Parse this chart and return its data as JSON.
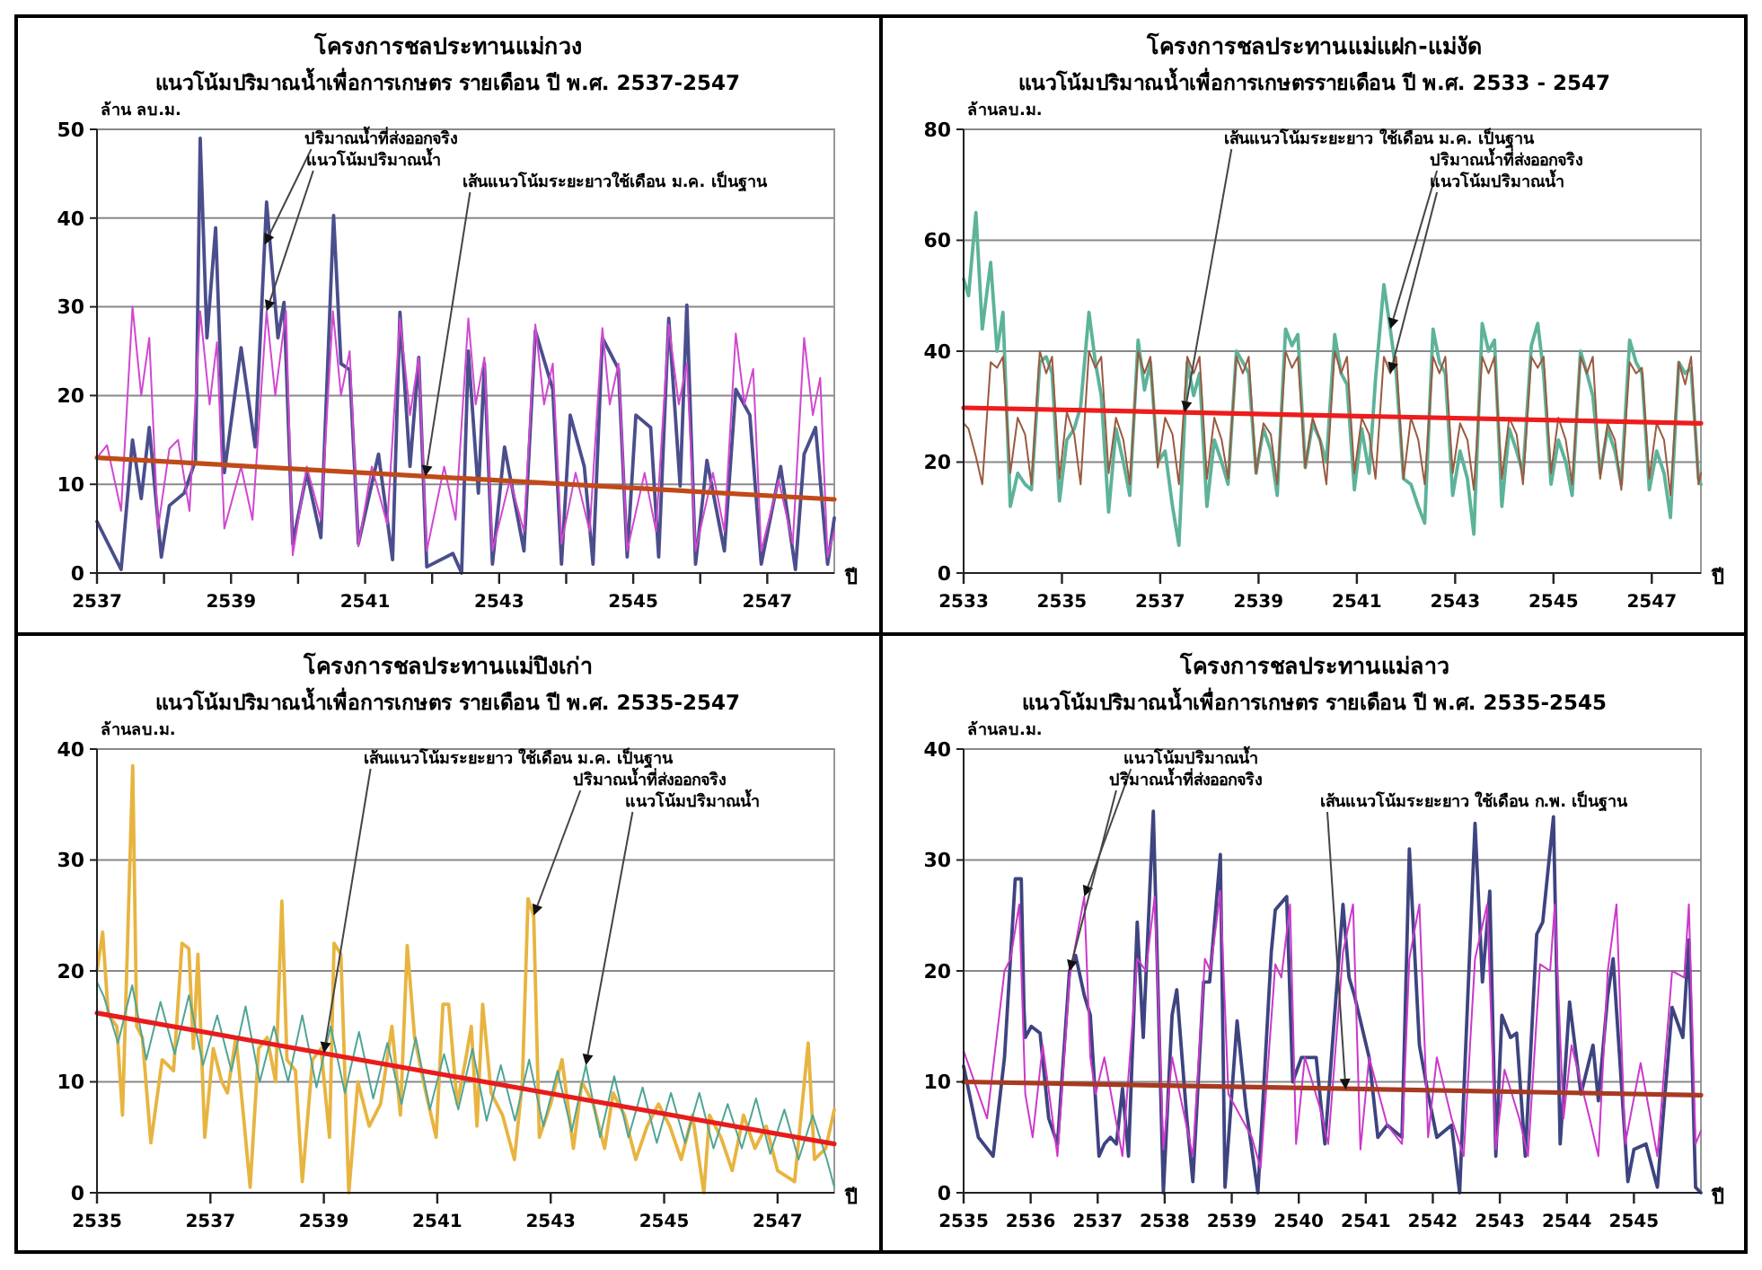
{
  "chart_data": [
    {
      "type": "line",
      "title": "โครงการชลประทานแม่กวง",
      "subtitle": "แนวโน้มปริมาณน้ำเพื่อการเกษตร รายเดือน ปี พ.ศ. 2537-2547",
      "ylabel": "ล้าน ลบ.ม.",
      "xlabel": "ปี",
      "xlim": [
        2537,
        2548
      ],
      "ylim": [
        0,
        50
      ],
      "yticks": [
        0,
        10,
        20,
        30,
        40,
        50
      ],
      "grid": "y",
      "xticks": [
        2537,
        {
          "value": 2538,
          "label": null
        },
        2539,
        {
          "value": 2540,
          "label": null
        },
        2541,
        {
          "value": 2542,
          "label": null
        },
        2543,
        {
          "value": 2544,
          "label": null
        },
        2545,
        {
          "value": 2546,
          "label": null
        },
        2547
      ],
      "series": [
        {
          "color": "#4a4e8c",
          "x": [
            2537,
            2537.36,
            2537.53,
            2537.66,
            2537.78,
            2537.96,
            2538.08,
            2538.3,
            2538.47,
            2538.54,
            2538.64,
            2538.77,
            2538.9,
            2539.15,
            2539.36,
            2539.53,
            2539.7,
            2539.79,
            2539.92,
            2540.13,
            2540.34,
            2540.53,
            2540.64,
            2540.77,
            2540.9,
            2541.2,
            2541.41,
            2541.52,
            2541.67,
            2541.8,
            2541.92,
            2542.31,
            2542.44,
            2542.54,
            2542.69,
            2542.78,
            2542.9,
            2543.08,
            2543.37,
            2543.54,
            2543.8,
            2543.93,
            2544.06,
            2544.27,
            2544.4,
            2544.54,
            2544.78,
            2544.91,
            2545.04,
            2545.26,
            2545.38,
            2545.53,
            2545.7,
            2545.8,
            2545.93,
            2546.1,
            2546.36,
            2546.53,
            2546.74,
            2546.91,
            2547.2,
            2547.42,
            2547.55,
            2547.72,
            2547.9,
            2548
          ],
          "values": [
            5.8,
            0.4,
            15,
            8.4,
            16.4,
            1.8,
            7.6,
            9,
            12.7,
            49,
            26.5,
            38.9,
            11.3,
            25.4,
            14.2,
            41.8,
            26.5,
            30.5,
            3.3,
            11.3,
            4,
            40.3,
            23.6,
            22.9,
            3.3,
            13.4,
            1.5,
            29.4,
            12,
            24.3,
            0.7,
            2.2,
            0,
            25,
            9,
            23.6,
            1,
            14.2,
            2.5,
            27.3,
            20.7,
            1,
            17.8,
            12,
            1,
            26.5,
            23,
            1.8,
            17.8,
            16.4,
            1.8,
            28.7,
            9.8,
            30.2,
            1,
            12.7,
            2.5,
            20.7,
            17.8,
            1,
            12,
            0.4,
            13.4,
            16.4,
            1,
            6.2
          ]
        },
        {
          "color": "#d048d0",
          "x": [
            2537,
            2537.15,
            2537.36,
            2537.53,
            2537.66,
            2537.78,
            2537.91,
            2538.08,
            2538.21,
            2538.38,
            2538.54,
            2538.68,
            2538.79,
            2538.9,
            2539.15,
            2539.32,
            2539.53,
            2539.66,
            2539.82,
            2539.92,
            2540.13,
            2540.34,
            2540.52,
            2540.64,
            2540.77,
            2540.9,
            2541.1,
            2541.33,
            2541.52,
            2541.67,
            2541.8,
            2541.92,
            2542.18,
            2542.35,
            2542.54,
            2542.65,
            2542.78,
            2542.9,
            2543.16,
            2543.37,
            2543.54,
            2543.67,
            2543.8,
            2543.93,
            2544.14,
            2544.35,
            2544.54,
            2544.65,
            2544.78,
            2544.91,
            2545.17,
            2545.34,
            2545.53,
            2545.68,
            2545.8,
            2545.93,
            2546.19,
            2546.36,
            2546.53,
            2546.66,
            2546.79,
            2546.91,
            2547.17,
            2547.38,
            2547.55,
            2547.68,
            2547.79,
            2547.9,
            2548
          ],
          "values": [
            13,
            14.4,
            7,
            30,
            20,
            26.5,
            5,
            14,
            15,
            7,
            29.5,
            19,
            26,
            5,
            12,
            6,
            29.5,
            20,
            29.5,
            2,
            12,
            6,
            29.5,
            20,
            25,
            3,
            12,
            5.5,
            28.7,
            17.8,
            24.3,
            2.5,
            12,
            6,
            28.7,
            19,
            24.3,
            2.5,
            10.5,
            4.7,
            28,
            19,
            23.6,
            3.3,
            11.3,
            4.7,
            27.6,
            19,
            23.6,
            2.5,
            11.3,
            4.7,
            28,
            19,
            23.6,
            2.5,
            11.3,
            4.7,
            27,
            19,
            23,
            2.5,
            10.5,
            3.3,
            26.5,
            17.8,
            22,
            1.8,
            4.7
          ]
        },
        {
          "color": "#c04a1a",
          "x": [
            2537,
            2548
          ],
          "values": [
            13,
            8.3
          ]
        }
      ],
      "annotations": [
        {
          "text": "ปริมาณน้ำที่ส่งออกจริง",
          "x": 2539.5,
          "y": 37
        },
        {
          "text": "แนวโน้มปริมาณน้ำ",
          "x": 2539.53,
          "y": 29.5
        },
        {
          "text": "เส้นแนวโน้มระยะยาวใช้เดือน ม.ค. เป็นฐาน",
          "x": 2541.9,
          "y": 10.9
        }
      ]
    },
    {
      "type": "line",
      "title": "โครงการชลประทานแม่แฝก-แม่งัด",
      "subtitle": "แนวโน้มปริมาณน้ำเพื่อการเกษตรรายเดือน ปี พ.ศ. 2533 - 2547",
      "ylabel": "ล้านลบ.ม.",
      "xlabel": "ปี",
      "xlim": [
        2533,
        2548
      ],
      "ylim": [
        0,
        80
      ],
      "yticks": [
        0,
        20,
        40,
        60,
        80
      ],
      "grid": "y",
      "xticks": [
        2533,
        2535,
        2537,
        2539,
        2541,
        2543,
        2545,
        2547
      ],
      "series": [
        {
          "color": "#5cb39a",
          "x": [
            2533,
            2533.1,
            2533.25,
            2533.38,
            2533.55,
            2533.68,
            2533.8,
            2533.95,
            2534.1,
            2534.25,
            2534.38,
            2534.55,
            2534.68,
            2534.8,
            2534.95,
            2535.1,
            2535.25,
            2535.38,
            2535.55,
            2535.68,
            2535.8,
            2535.95,
            2536.1,
            2536.25,
            2536.38,
            2536.55,
            2536.68,
            2536.8,
            2536.95,
            2537.1,
            2537.25,
            2537.38,
            2537.55,
            2537.68,
            2537.8,
            2537.95,
            2538.1,
            2538.25,
            2538.38,
            2538.55,
            2538.68,
            2538.8,
            2538.95,
            2539.1,
            2539.25,
            2539.38,
            2539.55,
            2539.68,
            2539.8,
            2539.95,
            2540.1,
            2540.25,
            2540.38,
            2540.55,
            2540.68,
            2540.8,
            2540.95,
            2541.1,
            2541.25,
            2541.38,
            2541.55,
            2541.68,
            2541.8,
            2541.95,
            2542.1,
            2542.25,
            2542.38,
            2542.55,
            2542.68,
            2542.8,
            2542.95,
            2543.1,
            2543.25,
            2543.38,
            2543.55,
            2543.68,
            2543.8,
            2543.95,
            2544.1,
            2544.25,
            2544.38,
            2544.55,
            2544.68,
            2544.8,
            2544.95,
            2545.1,
            2545.25,
            2545.38,
            2545.55,
            2545.68,
            2545.8,
            2545.95,
            2546.1,
            2546.25,
            2546.38,
            2546.55,
            2546.68,
            2546.8,
            2546.95,
            2547.1,
            2547.25,
            2547.38,
            2547.55,
            2547.68,
            2547.8,
            2547.95,
            2548
          ],
          "values": [
            53,
            50,
            65,
            44,
            56,
            40,
            47,
            12,
            18,
            16,
            15,
            38,
            39,
            36,
            13,
            24,
            26,
            30,
            47,
            38,
            32,
            11,
            26,
            20,
            14,
            42,
            33,
            38,
            20,
            22,
            12,
            5,
            38,
            32,
            36,
            12,
            24,
            20,
            16,
            40,
            38,
            36,
            18,
            26,
            22,
            14,
            44,
            41,
            43,
            19,
            27,
            24,
            20,
            43,
            36,
            34,
            15,
            26,
            18,
            35,
            52,
            44,
            36,
            17,
            16,
            12,
            9,
            44,
            38,
            36,
            14,
            22,
            17,
            7,
            45,
            40,
            42,
            12,
            26,
            22,
            18,
            41,
            45,
            36,
            16,
            24,
            20,
            14,
            40,
            36,
            32,
            18,
            26,
            22,
            16,
            42,
            38,
            36,
            15,
            22,
            18,
            10,
            38,
            36,
            37,
            17,
            16
          ]
        },
        {
          "color": "#9a5a40",
          "x": [
            2533,
            2533.1,
            2533.25,
            2533.38,
            2533.55,
            2533.68,
            2533.8,
            2533.95,
            2534.1,
            2534.25,
            2534.38,
            2534.55,
            2534.68,
            2534.8,
            2534.95,
            2535.1,
            2535.25,
            2535.38,
            2535.55,
            2535.68,
            2535.8,
            2535.95,
            2536.1,
            2536.25,
            2536.38,
            2536.55,
            2536.68,
            2536.8,
            2536.95,
            2537.1,
            2537.25,
            2537.38,
            2537.55,
            2537.68,
            2537.8,
            2537.95,
            2538.1,
            2538.25,
            2538.38,
            2538.55,
            2538.68,
            2538.8,
            2538.95,
            2539.1,
            2539.25,
            2539.38,
            2539.55,
            2539.68,
            2539.8,
            2539.95,
            2540.1,
            2540.25,
            2540.38,
            2540.55,
            2540.68,
            2540.8,
            2540.95,
            2541.1,
            2541.25,
            2541.38,
            2541.55,
            2541.68,
            2541.8,
            2541.95,
            2542.1,
            2542.25,
            2542.38,
            2542.55,
            2542.68,
            2542.8,
            2542.95,
            2543.1,
            2543.25,
            2543.38,
            2543.55,
            2543.68,
            2543.8,
            2543.95,
            2544.1,
            2544.25,
            2544.38,
            2544.55,
            2544.68,
            2544.8,
            2544.95,
            2545.1,
            2545.25,
            2545.38,
            2545.55,
            2545.68,
            2545.8,
            2545.95,
            2546.1,
            2546.25,
            2546.38,
            2546.55,
            2546.68,
            2546.8,
            2546.95,
            2547.1,
            2547.25,
            2547.38,
            2547.55,
            2547.68,
            2547.8,
            2547.95,
            2548
          ],
          "values": [
            27,
            26,
            21,
            16,
            38,
            37,
            39,
            18,
            28,
            25,
            16,
            40,
            36,
            39,
            17,
            29,
            25,
            16,
            40,
            37,
            39,
            18,
            28,
            24,
            16,
            40,
            36,
            39,
            19,
            28,
            25,
            16,
            39,
            36,
            39,
            17,
            28,
            24,
            17,
            39,
            36,
            39,
            18,
            27,
            25,
            16,
            40,
            37,
            39,
            19,
            28,
            24,
            16,
            40,
            36,
            39,
            18,
            28,
            25,
            17,
            39,
            36,
            39,
            17,
            28,
            24,
            16,
            39,
            36,
            39,
            18,
            27,
            24,
            15,
            39,
            36,
            39,
            17,
            28,
            25,
            16,
            39,
            37,
            39,
            18,
            28,
            24,
            16,
            39,
            36,
            39,
            17,
            27,
            24,
            15,
            38,
            36,
            37,
            17,
            27,
            24,
            14,
            38,
            34,
            39,
            16,
            18
          ]
        },
        {
          "color": "#ee1c1c",
          "x": [
            2533,
            2548
          ],
          "values": [
            29.8,
            27
          ]
        }
      ],
      "annotations": [
        {
          "text": "เส้นแนวโน้มระยะยาว ใช้เดือน ม.ค. เป็นฐาน",
          "x": 2537.5,
          "y": 29
        },
        {
          "text": "ปริมาณน้ำที่ส่งออกจริง",
          "x": 2541.68,
          "y": 44
        },
        {
          "text": "แนวโน้มปริมาณน้ำ",
          "x": 2541.68,
          "y": 36
        }
      ]
    },
    {
      "type": "line",
      "title": "โครงการชลประทานแม่ปิงเก่า",
      "subtitle": "แนวโน้มปริมาณน้ำเพื่อการเกษตร รายเดือน ปี พ.ศ. 2535-2547",
      "ylabel": "ล้านลบ.ม.",
      "xlabel": "ปี",
      "xlim": [
        2535,
        2548
      ],
      "ylim": [
        0,
        40
      ],
      "yticks": [
        0,
        10,
        20,
        30,
        40
      ],
      "grid": "y",
      "xticks": [
        2535,
        2537,
        2539,
        2541,
        2543,
        2545,
        2547
      ],
      "series": [
        {
          "color": "#e8b440",
          "x": [
            2535,
            2535.1,
            2535.2,
            2535.35,
            2535.45,
            2535.63,
            2535.7,
            2535.8,
            2535.95,
            2536.15,
            2536.35,
            2536.5,
            2536.62,
            2536.7,
            2536.78,
            2536.9,
            2537.05,
            2537.2,
            2537.3,
            2537.45,
            2537.6,
            2537.7,
            2537.85,
            2538,
            2538.15,
            2538.26,
            2538.35,
            2538.5,
            2538.62,
            2538.8,
            2538.95,
            2539.1,
            2539.18,
            2539.3,
            2539.44,
            2539.6,
            2539.8,
            2540,
            2540.2,
            2540.35,
            2540.47,
            2540.6,
            2540.8,
            2540.98,
            2541.1,
            2541.2,
            2541.35,
            2541.5,
            2541.6,
            2541.7,
            2541.8,
            2541.95,
            2542.15,
            2542.36,
            2542.5,
            2542.6,
            2542.7,
            2542.8,
            2543,
            2543.2,
            2543.4,
            2543.55,
            2543.75,
            2543.95,
            2544.1,
            2544.3,
            2544.5,
            2544.7,
            2544.9,
            2545.1,
            2545.3,
            2545.5,
            2545.7,
            2545.8,
            2546,
            2546.2,
            2546.4,
            2546.6,
            2546.8,
            2547,
            2547.3,
            2547.54,
            2547.65,
            2547.85,
            2548
          ],
          "values": [
            20,
            23.5,
            16,
            15,
            7,
            38.5,
            15,
            14,
            4.5,
            12,
            11,
            22.5,
            22,
            13,
            21.5,
            5,
            13,
            10,
            9,
            14,
            6,
            0.5,
            13,
            14,
            10,
            26.3,
            12,
            11,
            1,
            12,
            13,
            5,
            22.5,
            21.5,
            0,
            10,
            6,
            8,
            15,
            7,
            22.3,
            14,
            9,
            5,
            17,
            17,
            8,
            12,
            15,
            6,
            17,
            9,
            7,
            3,
            10,
            26.5,
            25,
            5,
            8,
            12,
            4,
            10,
            8,
            4,
            9,
            7,
            3,
            6,
            8,
            6,
            3,
            7,
            0,
            7,
            5,
            2,
            7,
            4,
            6,
            2,
            1,
            13.5,
            3,
            4,
            7.5
          ]
        },
        {
          "color": "#4fa596",
          "x": [
            2535,
            2535.12,
            2535.37,
            2535.62,
            2535.87,
            2536.12,
            2536.37,
            2536.62,
            2536.87,
            2537.12,
            2537.37,
            2537.62,
            2537.87,
            2538.12,
            2538.37,
            2538.62,
            2538.87,
            2539.12,
            2539.37,
            2539.62,
            2539.87,
            2540.12,
            2540.37,
            2540.62,
            2540.87,
            2541.12,
            2541.37,
            2541.62,
            2541.87,
            2542.12,
            2542.37,
            2542.62,
            2542.87,
            2543.12,
            2543.37,
            2543.62,
            2543.87,
            2544.12,
            2544.37,
            2544.62,
            2544.87,
            2545.12,
            2545.37,
            2545.62,
            2545.87,
            2546.12,
            2546.37,
            2546.62,
            2546.87,
            2547.12,
            2547.37,
            2547.62,
            2547.87,
            2548
          ],
          "values": [
            19,
            17.7,
            13.5,
            18.7,
            12,
            17.2,
            12.5,
            17.8,
            11.5,
            16,
            11,
            16.8,
            10,
            15,
            10,
            16,
            9.5,
            15,
            9,
            14.5,
            8.5,
            13.5,
            8,
            14,
            7.5,
            12.5,
            7.5,
            13,
            6.5,
            11.5,
            6.5,
            12,
            6,
            11,
            5.5,
            11.5,
            5,
            10.5,
            5,
            9.5,
            4.5,
            9,
            4.5,
            9,
            4,
            8,
            4,
            8.5,
            3.5,
            7.5,
            3,
            7,
            3,
            0.5
          ]
        },
        {
          "color": "#e81c1c",
          "x": [
            2535,
            2548
          ],
          "values": [
            16.2,
            4.4
          ]
        }
      ],
      "annotations": [
        {
          "text": "เส้นแนวโน้มระยะยาว ใช้เดือน ม.ค. เป็นฐาน",
          "x": 2539,
          "y": 12.6
        },
        {
          "text": "ปริมาณน้ำที่ส่งออกจริง",
          "x": 2542.7,
          "y": 25
        },
        {
          "text": "แนวโน้มปริมาณน้ำ",
          "x": 2543.62,
          "y": 11.5
        }
      ]
    },
    {
      "type": "line",
      "title": "โครงการชลประทานแม่ลาว",
      "subtitle": "แนวโน้มปริมาณน้ำเพื่อการเกษตร รายเดือน ปี พ.ศ. 2535-2545",
      "ylabel": "ล้านลบ.ม.",
      "xlabel": "ปี",
      "xlim": [
        2535,
        2546
      ],
      "ylim": [
        0,
        40
      ],
      "yticks": [
        0,
        10,
        20,
        30,
        40
      ],
      "grid": "y",
      "xticks": [
        2535,
        2536,
        2537,
        2538,
        2539,
        2540,
        2541,
        2542,
        2543,
        2544,
        2545
      ],
      "series": [
        {
          "color": "#3e4480",
          "x": [
            2535,
            2535.22,
            2535.44,
            2535.61,
            2535.77,
            2535.86,
            2535.9,
            2535.92,
            2536.01,
            2536.14,
            2536.27,
            2536.4,
            2536.58,
            2536.67,
            2536.8,
            2536.89,
            2537.02,
            2537.1,
            2537.19,
            2537.28,
            2537.37,
            2537.46,
            2537.59,
            2537.68,
            2537.83,
            2537.98,
            2538.11,
            2538.18,
            2538.33,
            2538.42,
            2538.58,
            2538.67,
            2538.83,
            2538.9,
            2539.08,
            2539.21,
            2539.39,
            2539.59,
            2539.65,
            2539.82,
            2539.91,
            2540.04,
            2540.26,
            2540.39,
            2540.66,
            2540.75,
            2540.83,
            2541.05,
            2541.18,
            2541.32,
            2541.54,
            2541.65,
            2541.8,
            2541.93,
            2542.06,
            2542.28,
            2542.4,
            2542.63,
            2542.74,
            2542.85,
            2542.94,
            2543.03,
            2543.16,
            2543.25,
            2543.38,
            2543.55,
            2543.64,
            2543.8,
            2543.9,
            2544.04,
            2544.21,
            2544.39,
            2544.47,
            2544.61,
            2544.69,
            2544.91,
            2545,
            2545.18,
            2545.35,
            2545.57,
            2545.73,
            2545.82,
            2545.92,
            2546
          ],
          "values": [
            11.4,
            5,
            3.3,
            12.2,
            28.3,
            28.3,
            16.7,
            14,
            15,
            14.4,
            6.7,
            4.4,
            20,
            21.4,
            17.8,
            16,
            3.3,
            4.4,
            5,
            4.4,
            9.4,
            3.3,
            24.4,
            14,
            34.4,
            0,
            16,
            18.3,
            6.7,
            1,
            19,
            19,
            30.5,
            0.5,
            15.5,
            7.8,
            0,
            21.7,
            25.5,
            26.7,
            10,
            12.2,
            12.2,
            4.4,
            26,
            19.4,
            17.8,
            12.2,
            5,
            6.1,
            5,
            31,
            13.3,
            8.9,
            5,
            6.1,
            0,
            33.3,
            19,
            27.2,
            3.3,
            16,
            14,
            14.4,
            3.3,
            23.3,
            24.4,
            33.9,
            4.4,
            17.2,
            8.9,
            13.3,
            8.3,
            17.8,
            21.1,
            1,
            3.9,
            4.4,
            0.5,
            16.7,
            14,
            22.8,
            0.5,
            0
          ]
        },
        {
          "color": "#cc38cc",
          "x": [
            2535,
            2535.35,
            2535.61,
            2535.7,
            2535.83,
            2535.92,
            2536.03,
            2536.18,
            2536.4,
            2536.58,
            2536.8,
            2536.89,
            2536.97,
            2537.1,
            2537.37,
            2537.59,
            2537.72,
            2537.85,
            2537.98,
            2538.11,
            2538.42,
            2538.6,
            2538.68,
            2538.83,
            2538.95,
            2539.3,
            2539.43,
            2539.65,
            2539.74,
            2539.87,
            2539.96,
            2540.09,
            2540.31,
            2540.44,
            2540.66,
            2540.81,
            2540.92,
            2541.05,
            2541.32,
            2541.54,
            2541.65,
            2541.8,
            2541.93,
            2542.06,
            2542.28,
            2542.46,
            2542.63,
            2542.81,
            2542.94,
            2543.07,
            2543.29,
            2543.42,
            2543.6,
            2543.75,
            2543.82,
            2543.95,
            2544.07,
            2544.34,
            2544.47,
            2544.61,
            2544.74,
            2544.87,
            2545.1,
            2545.35,
            2545.57,
            2545.75,
            2545.82,
            2545.92,
            2546
          ],
          "values": [
            12.8,
            6.7,
            20,
            21.1,
            26,
            8.9,
            5,
            13.3,
            3.3,
            19.4,
            26.7,
            12.2,
            8.9,
            12.2,
            3.3,
            21.1,
            20,
            26.7,
            3.9,
            12.2,
            3.3,
            21.1,
            20,
            27.2,
            8.9,
            5,
            2.2,
            20.6,
            19.4,
            26,
            4.4,
            12.2,
            7.8,
            4.4,
            21.7,
            26,
            3.9,
            12.2,
            6.1,
            4.4,
            21.1,
            26,
            5,
            12.2,
            6.7,
            3.3,
            21.1,
            26,
            3.9,
            11.1,
            6.7,
            3.3,
            20.6,
            20,
            26,
            6.7,
            13.3,
            6.7,
            3.3,
            20,
            26,
            4.4,
            11.7,
            3.3,
            20,
            19.4,
            26,
            4.4,
            5.6
          ]
        },
        {
          "color": "#a83a22",
          "x": [
            2535,
            2546
          ],
          "values": [
            10,
            8.8
          ]
        }
      ],
      "annotations": [
        {
          "text": "แนวโน้มปริมาณน้ำ",
          "x": 2536.8,
          "y": 26.7
        },
        {
          "text": "ปริมาณน้ำที่ส่งออกจริง",
          "x": 2536.58,
          "y": 20
        },
        {
          "text": "เส้นแนวโน้มระยะยาว ใช้เดือน ก.พ. เป็นฐาน",
          "x": 2540.7,
          "y": 9.3
        }
      ]
    }
  ]
}
